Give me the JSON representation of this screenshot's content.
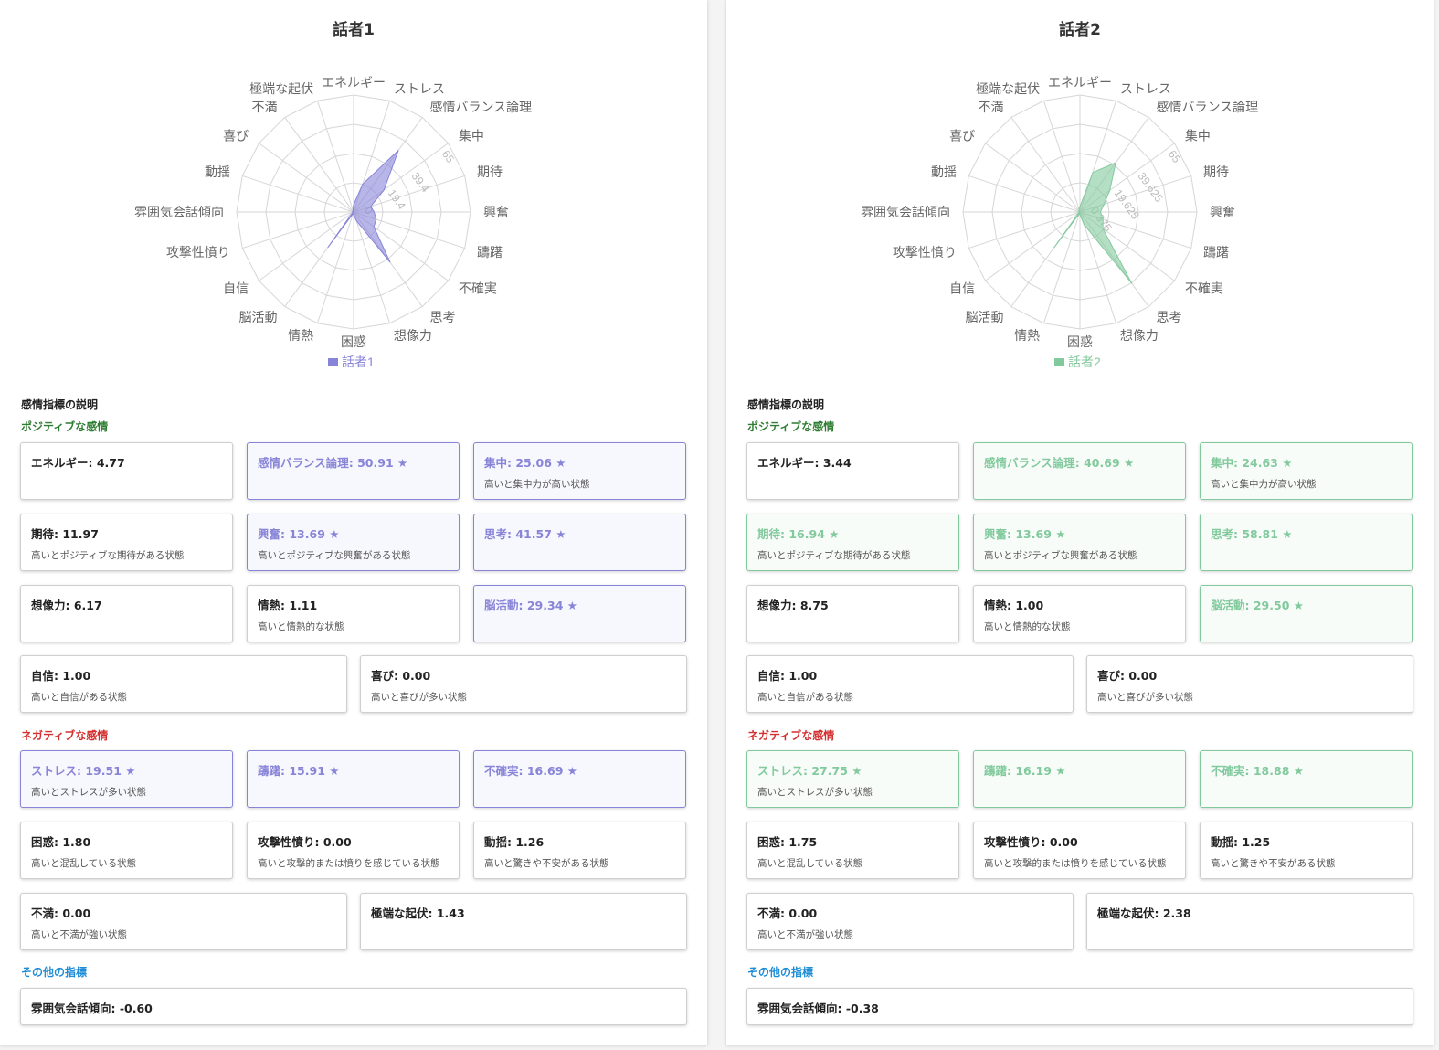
{
  "panels": [
    {
      "title": "話者1",
      "color": "#8884d8",
      "legend": "話者1",
      "section_title": "感情指標の説明",
      "positive_title": "ポジティブな感情",
      "negative_title": "ネガティブな感情",
      "other_title": "その他の指標",
      "cards": [
        {
          "label": "エネルギー: 4.77",
          "desc": "",
          "hl": false
        },
        {
          "label": "感情バランス論理: 50.91 ★",
          "desc": "",
          "hl": true
        },
        {
          "label": "集中: 25.06 ★",
          "desc": "高いと集中力が高い状態",
          "hl": true
        },
        {
          "label": "期待: 11.97",
          "desc": "高いとポジティブな期待がある状態",
          "hl": false
        },
        {
          "label": "興奮: 13.69 ★",
          "desc": "高いとポジティブな興奮がある状態",
          "hl": true
        },
        {
          "label": "思考: 41.57 ★",
          "desc": "",
          "hl": true
        },
        {
          "label": "想像力: 6.17",
          "desc": "",
          "hl": false
        },
        {
          "label": "情熱: 1.11",
          "desc": "高いと情熱的な状態",
          "hl": false
        },
        {
          "label": "脳活動: 29.34 ★",
          "desc": "",
          "hl": true
        },
        {
          "label": "自信: 1.00",
          "desc": "高いと自信がある状態",
          "hl": false
        },
        {
          "label": "喜び: 0.00",
          "desc": "高いと喜びが多い状態",
          "hl": false
        },
        {
          "label": "ストレス: 19.51 ★",
          "desc": "高いとストレスが多い状態",
          "hl": true
        },
        {
          "label": "躊躇: 15.91 ★",
          "desc": "",
          "hl": true
        },
        {
          "label": "不確実: 16.69 ★",
          "desc": "",
          "hl": true
        },
        {
          "label": "困惑: 1.80",
          "desc": "高いと混乱している状態",
          "hl": false
        },
        {
          "label": "攻撃性憤り: 0.00",
          "desc": "高いと攻撃的または憤りを感じている状態",
          "hl": false
        },
        {
          "label": "動揺: 1.26",
          "desc": "高いと驚きや不安がある状態",
          "hl": false
        },
        {
          "label": "不満: 0.00",
          "desc": "高いと不満が強い状態",
          "hl": false
        },
        {
          "label": "極端な起伏: 1.43",
          "desc": "",
          "hl": false
        },
        {
          "label": "雰囲気会話傾向: -0.60",
          "desc": "",
          "hl": false
        }
      ],
      "chart_data": {
        "type": "radar",
        "categories": [
          "エネルギー",
          "ストレス",
          "感情バランス論理",
          "集中",
          "期待",
          "興奮",
          "躊躇",
          "不確実",
          "思考",
          "想像力",
          "困惑",
          "情熱",
          "脳活動",
          "自信",
          "攻撃性憤り",
          "雰囲気会話傾向",
          "動揺",
          "喜び",
          "不満",
          "極端な起伏"
        ],
        "series": [
          {
            "name": "話者1",
            "values": [
              4.77,
              19.51,
              50.91,
              25.06,
              11.97,
              13.69,
              15.91,
              16.69,
              41.57,
              6.17,
              1.8,
              1.11,
              29.34,
              1.0,
              0.0,
              -0.6,
              1.26,
              0.0,
              0.0,
              1.43
            ]
          }
        ],
        "tick_labels": [
          "0",
          "19.4",
          "39.4",
          "65"
        ],
        "rmax": 78
      }
    },
    {
      "title": "話者2",
      "color": "#82ca9d",
      "legend": "話者2",
      "section_title": "感情指標の説明",
      "positive_title": "ポジティブな感情",
      "negative_title": "ネガティブな感情",
      "other_title": "その他の指標",
      "cards": [
        {
          "label": "エネルギー: 3.44",
          "desc": "",
          "hl": false
        },
        {
          "label": "感情バランス論理: 40.69 ★",
          "desc": "",
          "hl": true
        },
        {
          "label": "集中: 24.63 ★",
          "desc": "高いと集中力が高い状態",
          "hl": true
        },
        {
          "label": "期待: 16.94 ★",
          "desc": "高いとポジティブな期待がある状態",
          "hl": true
        },
        {
          "label": "興奮: 13.69 ★",
          "desc": "高いとポジティブな興奮がある状態",
          "hl": true
        },
        {
          "label": "思考: 58.81 ★",
          "desc": "",
          "hl": true
        },
        {
          "label": "想像力: 8.75",
          "desc": "",
          "hl": false
        },
        {
          "label": "情熱: 1.00",
          "desc": "高いと情熱的な状態",
          "hl": false
        },
        {
          "label": "脳活動: 29.50 ★",
          "desc": "",
          "hl": true
        },
        {
          "label": "自信: 1.00",
          "desc": "高いと自信がある状態",
          "hl": false
        },
        {
          "label": "喜び: 0.00",
          "desc": "高いと喜びが多い状態",
          "hl": false
        },
        {
          "label": "ストレス: 27.75 ★",
          "desc": "高いとストレスが多い状態",
          "hl": true
        },
        {
          "label": "躊躇: 16.19 ★",
          "desc": "",
          "hl": true
        },
        {
          "label": "不確実: 18.88 ★",
          "desc": "",
          "hl": true
        },
        {
          "label": "困惑: 1.75",
          "desc": "高いと混乱している状態",
          "hl": false
        },
        {
          "label": "攻撃性憤り: 0.00",
          "desc": "高いと攻撃的または憤りを感じている状態",
          "hl": false
        },
        {
          "label": "動揺: 1.25",
          "desc": "高いと驚きや不安がある状態",
          "hl": false
        },
        {
          "label": "不満: 0.00",
          "desc": "高いと不満が強い状態",
          "hl": false
        },
        {
          "label": "極端な起伏: 2.38",
          "desc": "",
          "hl": false
        },
        {
          "label": "雰囲気会話傾向: -0.38",
          "desc": "",
          "hl": false
        }
      ],
      "chart_data": {
        "type": "radar",
        "categories": [
          "エネルギー",
          "ストレス",
          "感情バランス論理",
          "集中",
          "期待",
          "興奮",
          "躊躇",
          "不確実",
          "思考",
          "想像力",
          "困惑",
          "情熱",
          "脳活動",
          "自信",
          "攻撃性憤り",
          "雰囲気会話傾向",
          "動揺",
          "喜び",
          "不満",
          "極端な起伏"
        ],
        "series": [
          {
            "name": "話者2",
            "values": [
              3.44,
              27.75,
              40.69,
              24.63,
              16.94,
              13.69,
              16.19,
              18.88,
              58.81,
              8.75,
              1.75,
              1.0,
              29.5,
              1.0,
              0.0,
              -0.38,
              1.25,
              0.0,
              0.0,
              2.38
            ]
          }
        ],
        "tick_labels": [
          "0.375",
          "19.625",
          "39.625",
          "65"
        ],
        "rmax": 78
      }
    }
  ]
}
